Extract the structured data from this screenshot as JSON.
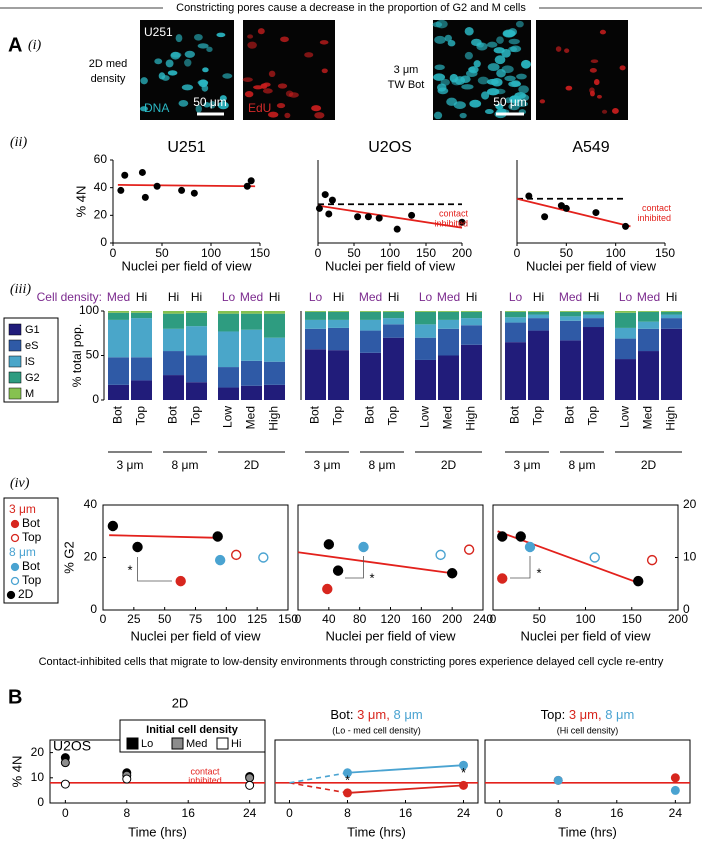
{
  "header": {
    "title": "Constricting pores cause a decrease in the proportion of G2 and M cells"
  },
  "panel_a": {
    "label": "A",
    "sublabel": "(i)",
    "cell_line": "U251",
    "left_condition": [
      "2D med",
      "density"
    ],
    "stain_dna": "DNA",
    "stain_edu": "EdU",
    "left_scale_bar": "50 μm",
    "right_condition": [
      "3 μm",
      "TW Bot"
    ],
    "right_scale_bar": "50 μm"
  },
  "section_labels": [
    "(ii)",
    "(iii)",
    "(iv)"
  ],
  "caption": "Contact-inhibited cells that migrate to low-density environments through constricting pores experience delayed cell cycle re-entry",
  "panel_b_label": "B",
  "chart_data": [
    {
      "type": "scatter",
      "title": "U251",
      "xlabel": "Nuclei per field of view",
      "ylabel": "% 4N",
      "x": [
        8,
        12,
        30,
        33,
        45,
        70,
        83,
        137,
        141
      ],
      "values": [
        38,
        49,
        51,
        33,
        41,
        38,
        36,
        41,
        45
      ],
      "color": "#000000",
      "xlim": [
        0,
        150
      ],
      "xticks": [
        0,
        50,
        100,
        150
      ],
      "ylim": [
        0,
        60
      ],
      "yticks": [
        0,
        20,
        40,
        60
      ],
      "fit_line": {
        "x": [
          5,
          145
        ],
        "values": [
          42,
          41
        ],
        "color": "#e3211c"
      }
    },
    {
      "type": "scatter",
      "title": "U2OS",
      "xlabel": "Nuclei per field of view",
      "x": [
        2,
        10,
        15,
        20,
        55,
        70,
        85,
        110,
        130,
        200
      ],
      "values": [
        25,
        35,
        21,
        31,
        19,
        19,
        18,
        10,
        20,
        15
      ],
      "color": "#000000",
      "xlim": [
        0,
        200
      ],
      "xticks": [
        0,
        50,
        100,
        150,
        200
      ],
      "ylim": [
        0,
        60
      ],
      "fit_line": {
        "x": [
          0,
          200
        ],
        "values": [
          27,
          11
        ],
        "color": "#e3211c"
      },
      "reference_line": {
        "x": [
          0,
          200
        ],
        "values": [
          28,
          28
        ],
        "color": "#000000"
      },
      "annotation": [
        "contact",
        "inhibited"
      ],
      "annotation_color": "#e3211c"
    },
    {
      "type": "scatter",
      "title": "A549",
      "xlabel": "Nuclei per field of view",
      "x": [
        12,
        28,
        45,
        50,
        80,
        110
      ],
      "values": [
        34,
        19,
        27,
        25,
        22,
        12
      ],
      "color": "#000000",
      "xlim": [
        0,
        150
      ],
      "xticks": [
        0,
        50,
        100,
        150
      ],
      "ylim": [
        0,
        60
      ],
      "fit_line": {
        "x": [
          0,
          115
        ],
        "values": [
          32,
          12
        ],
        "color": "#e3211c"
      },
      "reference_line": {
        "x": [
          0,
          110
        ],
        "values": [
          32,
          32
        ],
        "color": "#000000"
      },
      "annotation": [
        "contact",
        "inhibited"
      ],
      "annotation_color": "#e3211c"
    },
    {
      "type": "stacked_bar",
      "ylabel": "% total pop.",
      "density_label": "Cell density:",
      "density_label_color": "#7b2a8e",
      "categories": [
        "Bot",
        "Top",
        "Bot",
        "Top",
        "Low",
        "Med",
        "High"
      ],
      "densities": [
        {
          "label": "Med",
          "color": "#7b2a8e"
        },
        {
          "label": "Hi",
          "color": "#000000"
        },
        {
          "label": "Hi",
          "color": "#000000"
        },
        {
          "label": "Hi",
          "color": "#000000"
        },
        {
          "label": "Lo",
          "color": "#7b2a8e"
        },
        {
          "label": "Med",
          "color": "#7b2a8e"
        },
        {
          "label": "Hi",
          "color": "#000000"
        }
      ],
      "groups": [
        "3 μm",
        "8 μm",
        "2D"
      ],
      "ylim": [
        0,
        100
      ],
      "yticks": [
        0,
        50,
        100
      ],
      "series": [
        {
          "name": "G1",
          "color": "#211c7a",
          "values": [
            17,
            22,
            28,
            20,
            14,
            16,
            17
          ]
        },
        {
          "name": "eS",
          "color": "#2f5aa6",
          "values": [
            31,
            26,
            27,
            30,
            23,
            28,
            26
          ]
        },
        {
          "name": "lS",
          "color": "#4aa6c9",
          "values": [
            42,
            44,
            25,
            33,
            40,
            35,
            27
          ]
        },
        {
          "name": "G2",
          "color": "#2e9c80",
          "values": [
            8,
            6,
            17,
            15,
            20,
            18,
            27
          ]
        },
        {
          "name": "M",
          "color": "#86c150",
          "values": [
            2,
            2,
            3,
            2,
            3,
            3,
            3
          ]
        }
      ]
    },
    {
      "type": "stacked_bar",
      "categories": [
        "Bot",
        "Top",
        "Bot",
        "Top",
        "Low",
        "Med",
        "High"
      ],
      "densities": [
        {
          "label": "Lo",
          "color": "#7b2a8e"
        },
        {
          "label": "Hi",
          "color": "#000000"
        },
        {
          "label": "Med",
          "color": "#7b2a8e"
        },
        {
          "label": "Hi",
          "color": "#000000"
        },
        {
          "label": "Lo",
          "color": "#7b2a8e"
        },
        {
          "label": "Med",
          "color": "#7b2a8e"
        },
        {
          "label": "Hi",
          "color": "#000000"
        }
      ],
      "groups": [
        "3 μm",
        "8 μm",
        "2D"
      ],
      "ylim": [
        0,
        100
      ],
      "series": [
        {
          "color": "#211c7a",
          "values": [
            57,
            56,
            53,
            70,
            45,
            50,
            62
          ]
        },
        {
          "color": "#2f5aa6",
          "values": [
            23,
            25,
            25,
            15,
            25,
            30,
            22
          ]
        },
        {
          "color": "#4aa6c9",
          "values": [
            10,
            9,
            12,
            7,
            15,
            10,
            8
          ]
        },
        {
          "color": "#2e9c80",
          "values": [
            9,
            9,
            9,
            7,
            14,
            9,
            7
          ]
        },
        {
          "color": "#86c150",
          "values": [
            1,
            1,
            1,
            1,
            1,
            1,
            1
          ]
        }
      ]
    },
    {
      "type": "stacked_bar",
      "categories": [
        "Bot",
        "Top",
        "Bot",
        "Top",
        "Low",
        "Med",
        "High"
      ],
      "densities": [
        {
          "label": "Lo",
          "color": "#7b2a8e"
        },
        {
          "label": "Hi",
          "color": "#000000"
        },
        {
          "label": "Med",
          "color": "#7b2a8e"
        },
        {
          "label": "Hi",
          "color": "#000000"
        },
        {
          "label": "Lo",
          "color": "#7b2a8e"
        },
        {
          "label": "Med",
          "color": "#7b2a8e"
        },
        {
          "label": "Hi",
          "color": "#000000"
        }
      ],
      "groups": [
        "3 μm",
        "8 μm",
        "2D"
      ],
      "ylim": [
        0,
        100
      ],
      "series": [
        {
          "color": "#211c7a",
          "values": [
            65,
            78,
            67,
            82,
            46,
            55,
            80
          ]
        },
        {
          "color": "#2f5aa6",
          "values": [
            22,
            14,
            22,
            10,
            23,
            25,
            12
          ]
        },
        {
          "color": "#4aa6c9",
          "values": [
            6,
            4,
            5,
            4,
            12,
            8,
            4
          ]
        },
        {
          "color": "#2e9c80",
          "values": [
            6,
            3,
            5,
            3,
            17,
            11,
            3
          ]
        },
        {
          "color": "#86c150",
          "values": [
            1,
            1,
            1,
            1,
            2,
            1,
            1
          ]
        }
      ]
    },
    {
      "type": "scatter",
      "xlabel": "Nuclei per field of view",
      "ylabel": "% G2",
      "xlim": [
        0,
        150
      ],
      "xticks": [
        0,
        25,
        50,
        75,
        100,
        125,
        150
      ],
      "ylim": [
        0,
        40
      ],
      "yticks": [
        0,
        20,
        40
      ],
      "legend_groups": [
        {
          "name": "3 μm",
          "color": "#d7261e"
        },
        {
          "name": "8 μm",
          "color": "#4aa3d1"
        }
      ],
      "series": [
        {
          "name": "Bot",
          "color": "#d7261e",
          "filled": true,
          "x": [
            63
          ],
          "values": [
            11
          ]
        },
        {
          "name": "Top",
          "color": "#d7261e",
          "filled": false,
          "x": [
            108
          ],
          "values": [
            21
          ]
        },
        {
          "name": "Bot",
          "color": "#4aa3d1",
          "filled": true,
          "x": [
            95
          ],
          "values": [
            19
          ]
        },
        {
          "name": "Top",
          "color": "#4aa3d1",
          "filled": false,
          "x": [
            130
          ],
          "values": [
            20
          ]
        },
        {
          "name": "2D",
          "color": "#000000",
          "filled": true,
          "x": [
            8,
            28,
            93
          ],
          "values": [
            32,
            24,
            28
          ]
        }
      ],
      "fit_line": {
        "x": [
          5,
          93
        ],
        "values": [
          28.5,
          27.5
        ],
        "color": "#e3211c"
      },
      "significance": "*"
    },
    {
      "type": "scatter",
      "xlabel": "Nuclei per field of view",
      "xlim": [
        0,
        240
      ],
      "xticks": [
        0,
        40,
        80,
        120,
        160,
        200,
        240
      ],
      "ylim": [
        0,
        40
      ],
      "series": [
        {
          "color": "#d7261e",
          "filled": true,
          "x": [
            38
          ],
          "values": [
            8
          ]
        },
        {
          "color": "#d7261e",
          "filled": false,
          "x": [
            222
          ],
          "values": [
            23
          ]
        },
        {
          "color": "#4aa3d1",
          "filled": true,
          "x": [
            85
          ],
          "values": [
            24
          ]
        },
        {
          "color": "#4aa3d1",
          "filled": false,
          "x": [
            185
          ],
          "values": [
            21
          ]
        },
        {
          "color": "#000000",
          "filled": true,
          "x": [
            40,
            52,
            200
          ],
          "values": [
            25,
            15,
            14
          ]
        }
      ],
      "fit_line": {
        "x": [
          0,
          200
        ],
        "values": [
          22,
          14
        ],
        "color": "#e3211c"
      },
      "significance": "*"
    },
    {
      "type": "scatter",
      "xlabel": "Nuclei per field of view",
      "xlim": [
        0,
        200
      ],
      "xticks": [
        0,
        50,
        100,
        150,
        200
      ],
      "y2lim": [
        0,
        20
      ],
      "y2ticks": [
        0,
        10,
        20
      ],
      "series": [
        {
          "color": "#d7261e",
          "filled": true,
          "x": [
            10
          ],
          "values": [
            6
          ],
          "axis": "y2"
        },
        {
          "color": "#d7261e",
          "filled": false,
          "x": [
            172
          ],
          "values": [
            9.5
          ],
          "axis": "y2"
        },
        {
          "color": "#4aa3d1",
          "filled": true,
          "x": [
            40
          ],
          "values": [
            12
          ],
          "axis": "y2"
        },
        {
          "color": "#4aa3d1",
          "filled": false,
          "x": [
            110
          ],
          "values": [
            10
          ],
          "axis": "y2"
        },
        {
          "color": "#000000",
          "filled": true,
          "x": [
            10,
            30,
            157
          ],
          "values": [
            14,
            14,
            5.5
          ],
          "axis": "y2"
        }
      ],
      "fit_line": {
        "x": [
          5,
          160
        ],
        "values": [
          15,
          5
        ],
        "color": "#e3211c",
        "axis": "y2"
      },
      "significance": "*"
    },
    {
      "type": "scatter",
      "title": "2D",
      "label": "U2OS",
      "xlabel": "Time (hrs)",
      "ylabel": "% 4N",
      "xlim": [
        -2,
        26
      ],
      "xticks": [
        0,
        8,
        16,
        24
      ],
      "ylim": [
        0,
        25
      ],
      "yticks": [
        0,
        10,
        20
      ],
      "x": [
        0,
        8,
        24
      ],
      "legend_title": "Initial cell density",
      "series": [
        {
          "name": "Lo",
          "color": "#000000",
          "values": [
            18,
            12,
            10.5
          ]
        },
        {
          "name": "Med",
          "color": "#8c8c8c",
          "values": [
            16,
            11,
            10
          ]
        },
        {
          "name": "Hi",
          "color": "#ffffff",
          "values": [
            7.5,
            9.5,
            7
          ]
        }
      ],
      "contact_level": 8,
      "contact_color": "#e3211c",
      "annotation": [
        "contact",
        "inhibited"
      ]
    },
    {
      "type": "line",
      "title_parts": [
        "Bot:",
        "3 μm,",
        "8 μm"
      ],
      "subtitle": "(Lo - med cell density)",
      "xlabel": "Time (hrs)",
      "xlim": [
        -2,
        26
      ],
      "xticks": [
        0,
        8,
        16,
        24
      ],
      "ylim": [
        0,
        25
      ],
      "x": [
        8,
        24
      ],
      "start": {
        "x": 0,
        "value": 8
      },
      "series": [
        {
          "color": "#d7261e",
          "values": [
            4,
            7
          ]
        },
        {
          "color": "#4aa3d1",
          "values": [
            12,
            15
          ]
        }
      ],
      "contact_level": 8,
      "contact_color": "#e3211c",
      "significance": [
        "*",
        "*"
      ]
    },
    {
      "type": "scatter",
      "title_parts": [
        "Top:",
        "3 μm,",
        "8 μm"
      ],
      "subtitle": "(Hi cell density)",
      "xlabel": "Time (hrs)",
      "xlim": [
        -2,
        26
      ],
      "xticks": [
        0,
        8,
        16,
        24
      ],
      "ylim": [
        0,
        25
      ],
      "x": [
        8,
        24
      ],
      "series": [
        {
          "color": "#d7261e",
          "values": [
            9,
            10
          ]
        },
        {
          "color": "#4aa3d1",
          "values": [
            9,
            5
          ]
        }
      ],
      "contact_level": 8,
      "contact_color": "#e3211c"
    }
  ]
}
